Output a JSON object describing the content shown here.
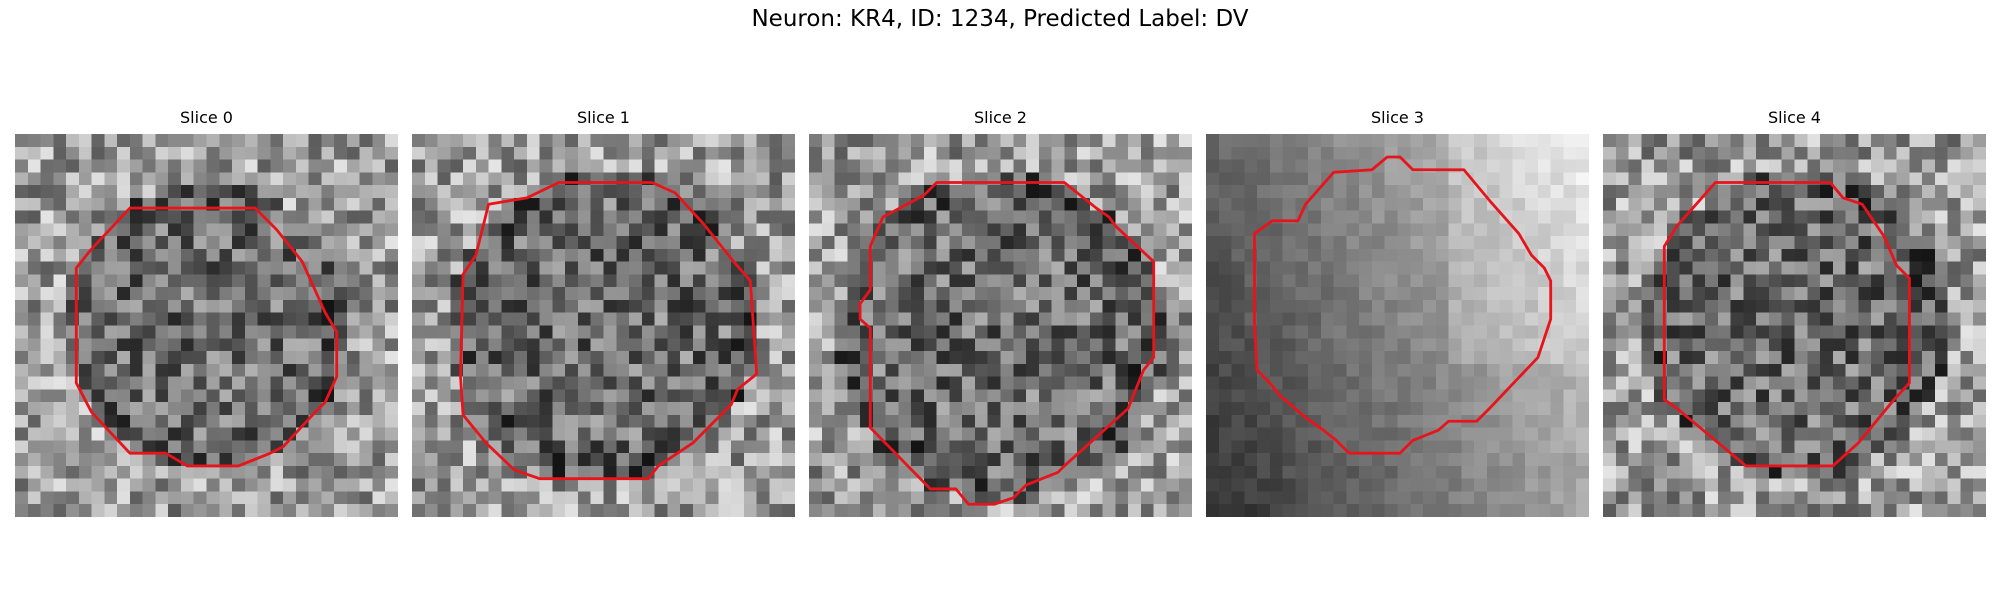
{
  "figure": {
    "title": "Neuron: KR4, ID: 1234, Predicted Label: DV"
  },
  "panels": [
    {
      "title": "Slice 0",
      "image": "grayscale-noise-with-red-outline"
    },
    {
      "title": "Slice 1",
      "image": "grayscale-noise-with-red-outline"
    },
    {
      "title": "Slice 2",
      "image": "grayscale-noise-with-red-outline"
    },
    {
      "title": "Slice 3",
      "image": "grayscale-gradient-with-red-outline"
    },
    {
      "title": "Slice 4",
      "image": "grayscale-noise-with-red-outline"
    }
  ],
  "colors": {
    "outline": "#e8141b",
    "background": "#ffffff",
    "text": "#000000"
  }
}
